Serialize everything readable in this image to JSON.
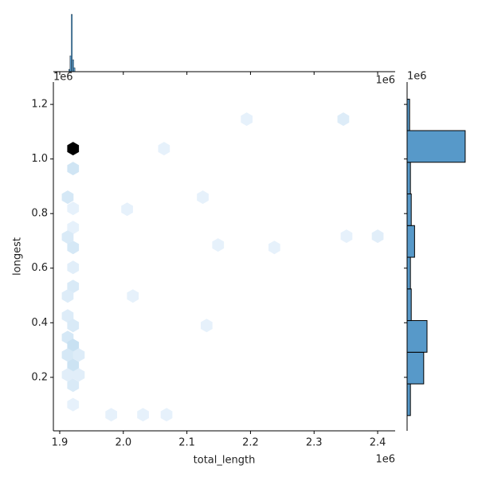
{
  "chart_data": [
    {
      "type": "hexbin",
      "x_label": "total_length",
      "y_label": "longest",
      "x_offset": "1e6",
      "y_offset": "1e6",
      "xlim": [
        1.89,
        2.4275
      ],
      "ylim": [
        0.004,
        1.282
      ],
      "xticks": [
        {
          "value": 1.9,
          "label": "1.9"
        },
        {
          "value": 2.0,
          "label": "2.0"
        },
        {
          "value": 2.1,
          "label": "2.1"
        },
        {
          "value": 2.2,
          "label": "2.2"
        },
        {
          "value": 2.3,
          "label": "2.3"
        },
        {
          "value": 2.4,
          "label": "2.4"
        }
      ],
      "yticks": [
        0.2,
        0.4,
        0.6,
        0.8,
        {
          "value": 1.0,
          "label": "1.0"
        },
        1.2
      ],
      "color": "#1f4e8c",
      "hexes": [
        {
          "x": 1.921,
          "y": 1.038,
          "count": 60
        },
        {
          "x": 1.921,
          "y": 0.965,
          "count": 6
        },
        {
          "x": 1.9125,
          "y": 0.86,
          "count": 5
        },
        {
          "x": 1.921,
          "y": 0.819,
          "count": 1
        },
        {
          "x": 1.921,
          "y": 0.749,
          "count": 1
        },
        {
          "x": 1.9125,
          "y": 0.714,
          "count": 4
        },
        {
          "x": 1.921,
          "y": 0.676,
          "count": 5
        },
        {
          "x": 1.921,
          "y": 0.603,
          "count": 2
        },
        {
          "x": 1.921,
          "y": 0.533,
          "count": 4
        },
        {
          "x": 1.9125,
          "y": 0.498,
          "count": 3
        },
        {
          "x": 1.9125,
          "y": 0.425,
          "count": 3
        },
        {
          "x": 1.921,
          "y": 0.39,
          "count": 4
        },
        {
          "x": 1.9125,
          "y": 0.346,
          "count": 5
        },
        {
          "x": 1.921,
          "y": 0.317,
          "count": 8
        },
        {
          "x": 1.9125,
          "y": 0.282,
          "count": 5
        },
        {
          "x": 1.93,
          "y": 0.282,
          "count": 3
        },
        {
          "x": 1.921,
          "y": 0.244,
          "count": 7
        },
        {
          "x": 1.9125,
          "y": 0.209,
          "count": 2
        },
        {
          "x": 1.93,
          "y": 0.209,
          "count": 2
        },
        {
          "x": 1.921,
          "y": 0.171,
          "count": 4
        },
        {
          "x": 1.921,
          "y": 0.1,
          "count": 1
        },
        {
          "x": 2.346,
          "y": 1.146,
          "count": 3
        },
        {
          "x": 2.194,
          "y": 1.146,
          "count": 1
        },
        {
          "x": 2.064,
          "y": 1.038,
          "count": 1
        },
        {
          "x": 2.125,
          "y": 0.86,
          "count": 1
        },
        {
          "x": 2.006,
          "y": 0.816,
          "count": 1
        },
        {
          "x": 2.149,
          "y": 0.685,
          "count": 1
        },
        {
          "x": 2.2375,
          "y": 0.676,
          "count": 1
        },
        {
          "x": 2.351,
          "y": 0.717,
          "count": 1
        },
        {
          "x": 2.4,
          "y": 0.717,
          "count": 2
        },
        {
          "x": 2.015,
          "y": 0.498,
          "count": 1
        },
        {
          "x": 2.131,
          "y": 0.39,
          "count": 1
        },
        {
          "x": 1.981,
          "y": 0.063,
          "count": 1
        },
        {
          "x": 2.031,
          "y": 0.063,
          "count": 1
        },
        {
          "x": 2.068,
          "y": 0.063,
          "count": 1
        }
      ]
    },
    {
      "type": "histogram",
      "orientation": "vertical",
      "x_offset": "1e6",
      "bins": [
        1.914,
        1.916,
        1.918,
        1.92,
        1.922,
        1.924
      ],
      "counts": [
        3,
        20,
        72,
        15,
        5
      ],
      "xlim": [
        1.89,
        2.4275
      ],
      "ylim": [
        0,
        72
      ],
      "color": "#5799c9"
    },
    {
      "type": "histogram",
      "orientation": "horizontal",
      "y_offset": "1e6",
      "bins": [
        0.06,
        0.176,
        0.292,
        0.408,
        0.524,
        0.64,
        0.756,
        0.872,
        0.988,
        1.104,
        1.219
      ],
      "counts": [
        4,
        20,
        24,
        5,
        4,
        9,
        5,
        4,
        70,
        3
      ],
      "ylim": [
        0.004,
        1.282
      ],
      "xlim": [
        0,
        72
      ],
      "color": "#5799c9"
    }
  ]
}
